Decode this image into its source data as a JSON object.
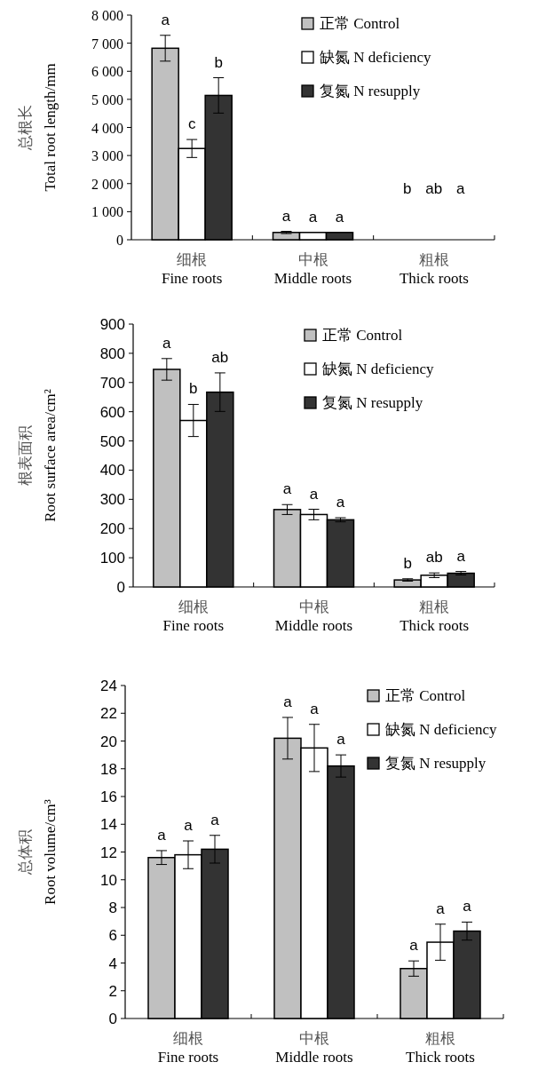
{
  "chart_data": [
    {
      "type": "bar",
      "ylabel": "总根长\nTotal root length/mm",
      "categories": [
        "细根\nFine roots",
        "中根\nMiddle roots",
        "粗根\nThick roots"
      ],
      "ylim": [
        0,
        8000
      ],
      "yticks": [
        0,
        {
          "value": 1000,
          "label": "1 000"
        },
        {
          "value": 2000,
          "label": "2 000"
        },
        {
          "value": 3000,
          "label": "3 000"
        },
        {
          "value": 4000,
          "label": "4 000"
        },
        {
          "value": 5000,
          "label": "5 000"
        },
        {
          "value": 6000,
          "label": "6 000"
        },
        {
          "value": 7000,
          "label": "7 000"
        },
        {
          "value": 8000,
          "label": "8 000"
        }
      ],
      "legend": "top right",
      "series": [
        {
          "name": "正常 Control",
          "color": "#c0c0c0",
          "values": [
            6820,
            260,
            null
          ],
          "errors": [
            460,
            40,
            null
          ],
          "value_labels": [
            "a",
            "a",
            "b"
          ]
        },
        {
          "name": "缺氮 N deficiency",
          "color": "#ffffff",
          "values": [
            3250,
            260,
            null
          ],
          "errors": [
            320,
            null,
            null
          ],
          "value_labels": [
            "c",
            "a",
            "ab"
          ]
        },
        {
          "name": "复氮 N resupply",
          "color": "#333333",
          "values": [
            5140,
            260,
            null
          ],
          "errors": [
            630,
            null,
            null
          ],
          "value_labels": [
            "b",
            "a",
            "a"
          ]
        }
      ]
    },
    {
      "type": "bar",
      "ylabel": "根表面积\nRoot surface area/cm²",
      "categories": [
        "细根\nFine roots",
        "中根\nMiddle roots",
        "粗根\nThick roots"
      ],
      "ylim": [
        0,
        900
      ],
      "yticks": [
        0,
        100,
        200,
        300,
        400,
        500,
        600,
        700,
        800,
        900
      ],
      "legend": "top right",
      "series": [
        {
          "name": "正常 Control",
          "color": "#c0c0c0",
          "values": [
            745,
            265,
            24
          ],
          "errors": [
            37,
            17,
            4
          ],
          "value_labels": [
            "a",
            "a",
            "b"
          ]
        },
        {
          "name": "缺氮 N deficiency",
          "color": "#ffffff",
          "values": [
            570,
            248,
            40
          ],
          "errors": [
            55,
            18,
            8
          ],
          "value_labels": [
            "b",
            "a",
            "ab"
          ]
        },
        {
          "name": "复氮 N resupply",
          "color": "#333333",
          "values": [
            667,
            230,
            47
          ],
          "errors": [
            66,
            7,
            6
          ],
          "value_labels": [
            "ab",
            "a",
            "a"
          ]
        }
      ]
    },
    {
      "type": "bar",
      "ylabel": "总体积\nRoot volume/cm³",
      "categories": [
        "细根\nFine roots",
        "中根\nMiddle roots",
        "粗根\nThick roots"
      ],
      "ylim": [
        0,
        24
      ],
      "yticks": [
        0,
        2,
        4,
        6,
        8,
        10,
        12,
        14,
        16,
        18,
        20,
        22,
        24
      ],
      "legend": "top right",
      "series": [
        {
          "name": "正常 Control",
          "color": "#c0c0c0",
          "values": [
            11.6,
            20.2,
            3.6
          ],
          "errors": [
            0.5,
            1.5,
            0.55
          ],
          "value_labels": [
            "a",
            "a",
            "a"
          ]
        },
        {
          "name": "缺氮 N deficiency",
          "color": "#ffffff",
          "values": [
            11.8,
            19.5,
            5.5
          ],
          "errors": [
            1.0,
            1.7,
            1.3
          ],
          "value_labels": [
            "a",
            "a",
            "a"
          ]
        },
        {
          "name": "复氮 N resupply",
          "color": "#333333",
          "values": [
            12.2,
            18.2,
            6.3
          ],
          "errors": [
            1.0,
            0.8,
            0.65
          ],
          "value_labels": [
            "a",
            "a",
            "a"
          ]
        }
      ]
    }
  ]
}
